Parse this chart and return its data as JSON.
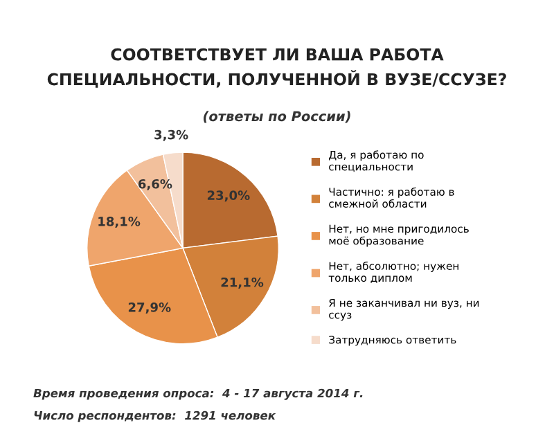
{
  "chart_data": {
    "type": "pie",
    "title": "СООТВЕТСТВУЕТ ЛИ ВАША РАБОТА\nСПЕЦИАЛЬНОСТИ, ПОЛУЧЕННОЙ В ВУЗЕ/ССУЗЕ?",
    "subtitle": "(ответы по России)",
    "categories": [
      "Да, я работаю по специальности",
      "Частично: я работаю в смежной области",
      "Нет, но мне пригодилось моё образование",
      "Нет, абсолютно; нужен только диплом",
      "Я не заканчивал ни вуз, ни ссуз",
      "Затрудняюсь ответить"
    ],
    "values": [
      23.0,
      21.1,
      27.9,
      18.1,
      6.6,
      3.3
    ],
    "value_labels": [
      "23,0%",
      "21,1%",
      "27,9%",
      "18,1%",
      "6,6%",
      "3,3%"
    ],
    "colors": [
      "#b86a30",
      "#d2813a",
      "#e8924a",
      "#efa56c",
      "#f2c09c",
      "#f6dccb"
    ],
    "legend": "right",
    "annotations": [
      "Время проведения опроса:  4 - 17 августа 2014 г.",
      "Число респондентов:  1291 человек"
    ]
  }
}
